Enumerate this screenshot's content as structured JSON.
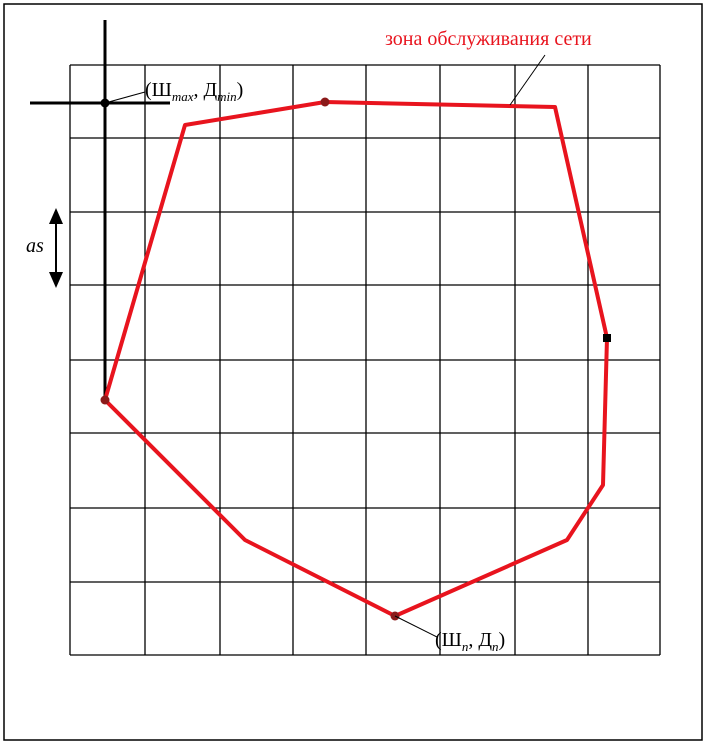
{
  "zone_label": "зона обслуживания сети",
  "top_point_label": [
    "(Ш",
    "max",
    ", Д",
    "min",
    ")"
  ],
  "step_label": "as",
  "bottom_point_label": [
    "(Ш",
    "n",
    ", Д",
    "n",
    ")"
  ]
}
